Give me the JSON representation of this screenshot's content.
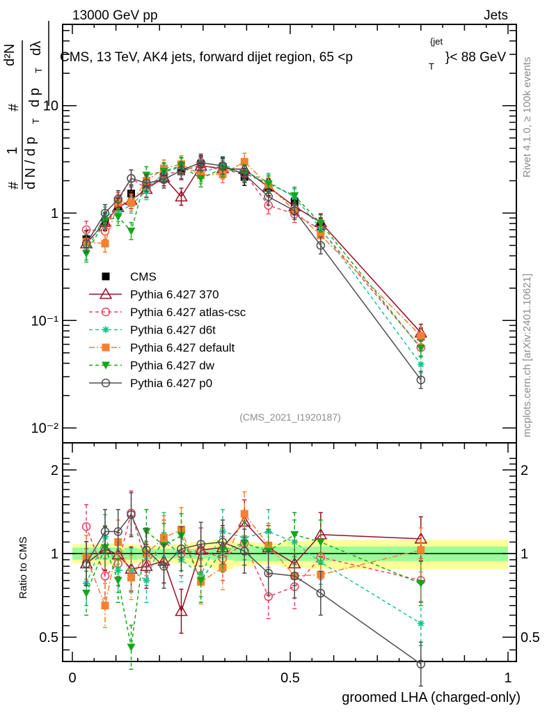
{
  "header": {
    "left_label": "13000 GeV pp",
    "right_label": "Jets",
    "plot_title_main": "CMS, 13 TeV, AK4 jets, forward dijet region, 65 <p",
    "plot_title_sub": "T",
    "plot_title_sup": "{jet",
    "plot_title_end": "}< 88 GeV",
    "analysis_id": "(CMS_2021_I1920187)",
    "side_label_top": "Rivet 4.1.0, ≥ 100k events",
    "side_label_bottom": "mcplots.cern.ch [arXiv:2401.10621]"
  },
  "chart_data": [
    {
      "type": "line",
      "panel": "main",
      "yscale": "log",
      "title": "CMS, 13 TeV, AK4 jets, forward dijet region, 65 < pT{jet} < 88 GeV",
      "ylabel": "1/N dN/dpT # d²N/dpT dλ",
      "xlabel": "groomed LHA (charged-only)",
      "xlim": [
        0,
        1
      ],
      "ylim": [
        0.007,
        25
      ],
      "ytick_labels": [
        "10⁻²",
        "10⁻¹",
        "1",
        "10"
      ],
      "ytick_values": [
        0.01,
        0.1,
        1,
        10
      ],
      "legend_position": "center-left",
      "x": [
        0.032,
        0.075,
        0.105,
        0.135,
        0.17,
        0.21,
        0.25,
        0.295,
        0.345,
        0.395,
        0.45,
        0.51,
        0.57,
        0.8
      ],
      "series": [
        {
          "name": "CMS",
          "color": "#000000",
          "marker": "square",
          "style": "none",
          "values": [
            0.57,
            0.83,
            1.15,
            1.52,
            1.85,
            2.3,
            2.45,
            2.85,
            2.7,
            2.17,
            1.72,
            1.27,
            0.75,
            0.071
          ]
        },
        {
          "name": "Pythia 6.427 370",
          "color": "#990d26",
          "marker": "triangle-open",
          "style": "solid",
          "values": [
            0.52,
            0.82,
            1.13,
            1.32,
            1.67,
            2.15,
            1.42,
            2.75,
            2.6,
            2.55,
            1.75,
            1.15,
            0.82,
            0.077
          ]
        },
        {
          "name": "Pythia 6.427 atlas-csc",
          "color": "#ef3f5f",
          "marker": "circle-open",
          "style": "dashed",
          "values": [
            0.7,
            0.68,
            1.3,
            2.1,
            1.7,
            2.3,
            2.45,
            2.8,
            2.5,
            2.35,
            1.18,
            0.98,
            0.7,
            0.056
          ]
        },
        {
          "name": "Pythia 6.427 d6t",
          "color": "#1bc48e",
          "marker": "star",
          "style": "dashed",
          "values": [
            0.44,
            0.95,
            1.0,
            1.2,
            1.6,
            2.4,
            2.7,
            2.35,
            2.8,
            2.45,
            1.95,
            1.4,
            0.72,
            0.039
          ]
        },
        {
          "name": "Pythia 6.427 default",
          "color": "#f5802f",
          "marker": "square",
          "style": "dashdot",
          "values": [
            0.54,
            0.52,
            1.25,
            1.25,
            2.0,
            2.6,
            2.85,
            2.25,
            2.3,
            3.0,
            1.82,
            1.05,
            0.62,
            0.072
          ]
        },
        {
          "name": "Pythia 6.427 dw",
          "color": "#12a81a",
          "marker": "triangle-down",
          "style": "dashed",
          "values": [
            0.42,
            0.85,
            0.92,
            0.68,
            2.25,
            2.45,
            2.75,
            2.1,
            2.6,
            2.35,
            1.88,
            1.45,
            0.8,
            0.055
          ]
        },
        {
          "name": "Pythia 6.427 p0",
          "color": "#4d4d4d",
          "marker": "circle-open",
          "style": "solid",
          "values": [
            0.52,
            1.0,
            1.35,
            2.1,
            1.9,
            2.05,
            2.5,
            2.95,
            2.75,
            2.3,
            1.42,
            1.05,
            0.5,
            0.028
          ]
        }
      ]
    },
    {
      "type": "line",
      "panel": "ratio",
      "yscale": "log",
      "ylabel": "Ratio to CMS",
      "xlabel": "groomed LHA (charged-only)",
      "xlim": [
        0,
        1
      ],
      "ylim": [
        0.43,
        2.3
      ],
      "ytick_labels": [
        "0.5",
        "1",
        "2"
      ],
      "ytick_values": [
        0.5,
        1,
        2
      ],
      "xtick_labels": [
        "0",
        "0.5",
        "1"
      ],
      "xtick_values": [
        0,
        0.5,
        1
      ],
      "x": [
        0.032,
        0.075,
        0.105,
        0.135,
        0.17,
        0.21,
        0.25,
        0.295,
        0.345,
        0.395,
        0.45,
        0.51,
        0.57,
        0.8
      ],
      "band_edges": [
        0,
        0.05,
        0.1,
        0.12,
        0.15,
        0.19,
        0.23,
        0.27,
        0.32,
        0.37,
        0.42,
        0.48,
        0.54,
        0.6,
        1.0
      ],
      "band_inner": [
        0.05,
        0.05,
        0.04,
        0.05,
        0.04,
        0.04,
        0.04,
        0.04,
        0.05,
        0.06,
        0.06,
        0.06,
        0.06,
        0.06
      ],
      "band_outer": [
        0.08,
        0.09,
        0.07,
        0.08,
        0.07,
        0.07,
        0.08,
        0.1,
        0.12,
        0.1,
        0.09,
        0.11,
        0.12,
        0.12
      ],
      "series": [
        {
          "name": "Pythia 6.427 370",
          "color": "#990d26",
          "marker": "triangle-open",
          "style": "solid",
          "values": [
            0.92,
            1.04,
            0.99,
            0.88,
            0.9,
            0.94,
            0.62,
            1.03,
            1.05,
            1.3,
            1.05,
            0.92,
            1.17,
            1.13
          ]
        },
        {
          "name": "Pythia 6.427 atlas-csc",
          "color": "#ef3f5f",
          "marker": "circle-open",
          "style": "dashed",
          "values": [
            1.25,
            0.83,
            0.92,
            1.4,
            0.92,
            1.1,
            1.0,
            1.03,
            0.96,
            1.09,
            0.7,
            0.76,
            0.97,
            0.8
          ]
        },
        {
          "name": "Pythia 6.427 d6t",
          "color": "#1bc48e",
          "marker": "star",
          "style": "dashed",
          "values": [
            0.78,
            1.15,
            0.87,
            0.87,
            0.8,
            1.17,
            0.95,
            0.84,
            1.2,
            1.14,
            1.2,
            1.1,
            0.93,
            0.56
          ]
        },
        {
          "name": "Pythia 6.427 default",
          "color": "#f5802f",
          "marker": "square",
          "style": "dashdot",
          "values": [
            0.97,
            0.65,
            1.1,
            0.82,
            1.0,
            1.14,
            1.22,
            0.79,
            0.89,
            1.39,
            1.07,
            0.83,
            0.84,
            1.03
          ]
        },
        {
          "name": "Pythia 6.427 dw",
          "color": "#12a81a",
          "marker": "triangle-down",
          "style": "dashed",
          "values": [
            0.72,
            1.05,
            0.8,
            0.46,
            1.2,
            1.07,
            1.16,
            0.8,
            1.03,
            1.09,
            1.02,
            1.17,
            1.1,
            0.78
          ]
        },
        {
          "name": "Pythia 6.427 p0",
          "color": "#4d4d4d",
          "marker": "circle-open",
          "style": "solid",
          "values": [
            0.92,
            1.2,
            1.2,
            1.38,
            1.03,
            0.9,
            1.04,
            1.08,
            1.1,
            1.02,
            0.85,
            0.83,
            0.72,
            0.4
          ]
        }
      ]
    }
  ]
}
